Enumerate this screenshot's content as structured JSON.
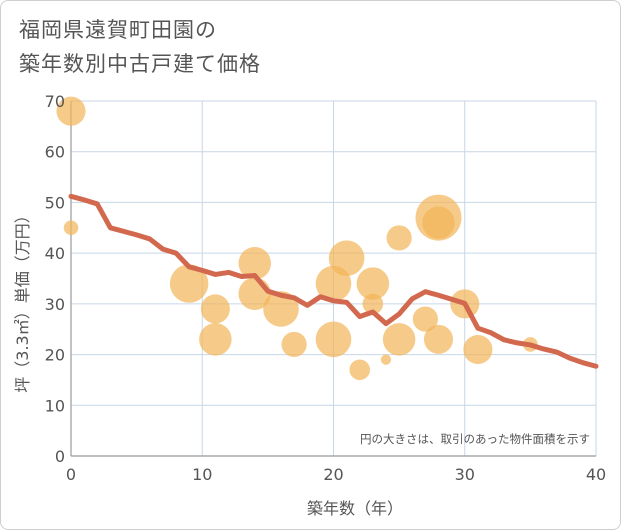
{
  "chart_data": {
    "type": "scatter",
    "title_lines": [
      "福岡県遠賀町田園の",
      "築年数別中古戸建て価格"
    ],
    "xlabel": "築年数（年）",
    "ylabel": "坪（3.3㎡）単価（万円）",
    "xlim": [
      0,
      40
    ],
    "ylim": [
      0,
      70
    ],
    "xticks": [
      "0",
      "10",
      "20",
      "30",
      "40"
    ],
    "yticks": [
      "0",
      "10",
      "20",
      "30",
      "40",
      "50",
      "60",
      "70"
    ],
    "grid": true,
    "annotation": "円の大きさは、取引のあった物件面積を示す",
    "colors": {
      "bubble": "#f2b55a",
      "line": "#d2694f",
      "grid": "#c8d6e6",
      "axis": "#999999",
      "text": "#555555"
    },
    "bubbles": [
      {
        "x": 0,
        "y": 68,
        "s": 4
      },
      {
        "x": 0,
        "y": 45,
        "s": 1
      },
      {
        "x": 9,
        "y": 34,
        "s": 7
      },
      {
        "x": 11,
        "y": 29,
        "s": 4
      },
      {
        "x": 11,
        "y": 23,
        "s": 5
      },
      {
        "x": 14,
        "y": 38,
        "s": 5
      },
      {
        "x": 14,
        "y": 32,
        "s": 5
      },
      {
        "x": 16,
        "y": 29,
        "s": 6
      },
      {
        "x": 17,
        "y": 22,
        "s": 3
      },
      {
        "x": 20,
        "y": 34,
        "s": 6
      },
      {
        "x": 20,
        "y": 23,
        "s": 6
      },
      {
        "x": 21,
        "y": 39,
        "s": 6
      },
      {
        "x": 22,
        "y": 17,
        "s": 2
      },
      {
        "x": 23,
        "y": 34,
        "s": 5
      },
      {
        "x": 23,
        "y": 30,
        "s": 2
      },
      {
        "x": 24,
        "y": 19,
        "s": 0.5
      },
      {
        "x": 25,
        "y": 43,
        "s": 3
      },
      {
        "x": 25,
        "y": 23,
        "s": 5
      },
      {
        "x": 27,
        "y": 27,
        "s": 3
      },
      {
        "x": 28,
        "y": 47,
        "s": 10
      },
      {
        "x": 28,
        "y": 46,
        "s": 5
      },
      {
        "x": 28,
        "y": 23,
        "s": 4
      },
      {
        "x": 30,
        "y": 30,
        "s": 4
      },
      {
        "x": 31,
        "y": 21,
        "s": 4
      },
      {
        "x": 35,
        "y": 22,
        "s": 1
      }
    ],
    "trend_x": [
      0,
      1,
      2,
      3,
      4,
      5,
      6,
      7,
      8,
      9,
      10,
      11,
      12,
      13,
      14,
      15,
      16,
      17,
      18,
      19,
      20,
      21,
      22,
      23,
      24,
      25,
      26,
      27,
      28,
      29,
      30,
      31,
      32,
      33,
      34,
      35,
      36,
      37,
      38,
      39,
      40
    ],
    "trend_y": [
      51.2,
      50.5,
      49.7,
      45,
      44.3,
      43.6,
      42.8,
      40.8,
      40,
      37.3,
      36.6,
      35.8,
      36.2,
      35.4,
      35.6,
      32.5,
      31.7,
      31.2,
      29.7,
      31.4,
      30.6,
      30.3,
      27.5,
      28.4,
      26.1,
      28,
      31,
      32.4,
      31.7,
      30.9,
      30.1,
      25.2,
      24.3,
      22.9,
      22.3,
      21.9,
      21.1,
      20.5,
      19.3,
      18.4,
      17.7
    ]
  }
}
